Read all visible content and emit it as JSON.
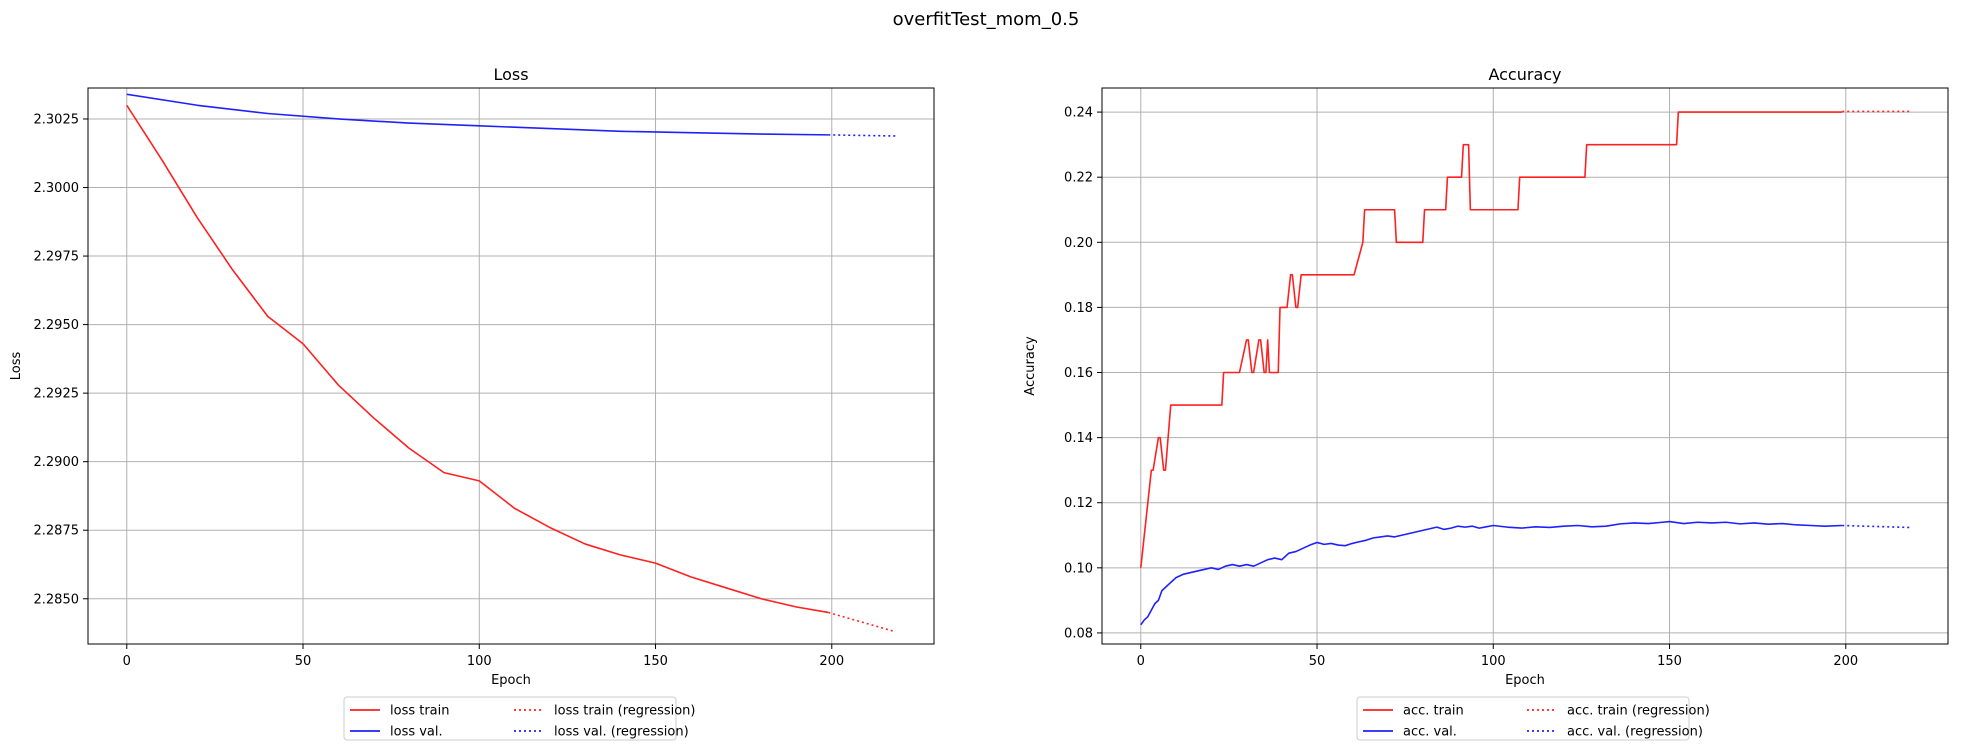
{
  "figure": {
    "suptitle": "overfitTest_mom_0.5"
  },
  "chart_data": [
    {
      "type": "line",
      "title": "Loss",
      "xlabel": "Epoch",
      "ylabel": "Loss",
      "xlim": [
        -11,
        229
      ],
      "ylim": [
        2.28335,
        2.30363
      ],
      "xticks": [
        0,
        50,
        100,
        150,
        200
      ],
      "yticks": [
        2.285,
        2.2875,
        2.29,
        2.2925,
        2.295,
        2.2975,
        2.3,
        2.3025
      ],
      "ytick_labels": [
        "2.2850",
        "2.2875",
        "2.2900",
        "2.2925",
        "2.2950",
        "2.2975",
        "2.3000",
        "2.3025"
      ],
      "grid": true,
      "legend": {
        "placement": "below-center",
        "columns": 2
      },
      "series": [
        {
          "name": "loss train",
          "color": "#ff2020",
          "style": "solid",
          "x": [
            0,
            10,
            20,
            30,
            40,
            50,
            60,
            70,
            80,
            90,
            100,
            110,
            120,
            130,
            140,
            150,
            160,
            170,
            180,
            190,
            199
          ],
          "y": [
            2.303,
            2.301,
            2.2989,
            2.297,
            2.2953,
            2.2943,
            2.2928,
            2.2916,
            2.2905,
            2.2896,
            2.2893,
            2.2883,
            2.2876,
            2.287,
            2.2866,
            2.2863,
            2.2858,
            2.2854,
            2.285,
            2.2847,
            2.2845
          ]
        },
        {
          "name": "loss val.",
          "color": "#2020ff",
          "style": "solid",
          "x": [
            0,
            20,
            40,
            60,
            80,
            100,
            120,
            140,
            160,
            180,
            199
          ],
          "y": [
            2.3034,
            2.303,
            2.3027,
            2.3025,
            2.30235,
            2.30225,
            2.30215,
            2.30205,
            2.302,
            2.30195,
            2.30192
          ]
        },
        {
          "name": "loss train (regression)",
          "color": "#ff2020",
          "style": "dotted",
          "x": [
            199,
            218
          ],
          "y": [
            2.2845,
            2.2838
          ]
        },
        {
          "name": "loss val. (regression)",
          "color": "#2020ff",
          "style": "dotted",
          "x": [
            199,
            218
          ],
          "y": [
            2.30192,
            2.30188
          ]
        }
      ]
    },
    {
      "type": "line",
      "title": "Accuracy",
      "xlabel": "Epoch",
      "ylabel": "Accuracy",
      "xlim": [
        -11,
        229
      ],
      "ylim": [
        0.0766,
        0.2474
      ],
      "xticks": [
        0,
        50,
        100,
        150,
        200
      ],
      "yticks": [
        0.08,
        0.1,
        0.12,
        0.14,
        0.16,
        0.18,
        0.2,
        0.22,
        0.24
      ],
      "ytick_labels": [
        "0.08",
        "0.10",
        "0.12",
        "0.14",
        "0.16",
        "0.18",
        "0.20",
        "0.22",
        "0.24"
      ],
      "grid": true,
      "legend": {
        "placement": "below-center",
        "columns": 2
      },
      "series": [
        {
          "name": "acc. train",
          "color": "#ff2020",
          "style": "solid",
          "x": [
            0,
            3,
            3.5,
            5,
            5.5,
            6.5,
            7,
            8.5,
            9,
            23,
            23.5,
            27.5,
            28,
            30,
            30.5,
            31.5,
            32,
            33.5,
            34,
            35,
            35.5,
            36,
            36.5,
            39,
            39.5,
            41,
            41.5,
            42.5,
            43,
            44,
            44.5,
            45.5,
            46,
            53,
            60,
            60.5,
            63,
            63.5,
            72,
            72.5,
            78,
            78.5,
            80,
            80.5,
            86.5,
            87,
            89,
            89.5,
            91,
            91.5,
            93,
            93.5,
            104,
            107,
            107.5,
            116,
            126,
            126.5,
            141,
            152,
            152.5,
            160,
            199
          ],
          "y": [
            0.1,
            0.13,
            0.13,
            0.14,
            0.14,
            0.13,
            0.13,
            0.15,
            0.15,
            0.15,
            0.16,
            0.16,
            0.16,
            0.17,
            0.17,
            0.16,
            0.16,
            0.17,
            0.17,
            0.16,
            0.16,
            0.17,
            0.16,
            0.16,
            0.18,
            0.18,
            0.18,
            0.19,
            0.19,
            0.18,
            0.18,
            0.19,
            0.19,
            0.19,
            0.19,
            0.19,
            0.2,
            0.21,
            0.21,
            0.2,
            0.2,
            0.2,
            0.2,
            0.21,
            0.21,
            0.22,
            0.22,
            0.22,
            0.22,
            0.23,
            0.23,
            0.21,
            0.21,
            0.21,
            0.22,
            0.22,
            0.22,
            0.23,
            0.23,
            0.23,
            0.24,
            0.24,
            0.24
          ]
        },
        {
          "name": "acc. val.",
          "color": "#2020ff",
          "style": "solid",
          "x": [
            0,
            1,
            2,
            3,
            4,
            5,
            6,
            7,
            8,
            9,
            10,
            12,
            14,
            16,
            18,
            20,
            22,
            24,
            26,
            28,
            30,
            32,
            34,
            36,
            38,
            40,
            42,
            44,
            46,
            48,
            50,
            52,
            54,
            56,
            58,
            60,
            62,
            64,
            66,
            68,
            70,
            72,
            74,
            76,
            78,
            80,
            82,
            84,
            86,
            88,
            90,
            92,
            94,
            96,
            98,
            100,
            104,
            108,
            112,
            116,
            120,
            124,
            128,
            132,
            136,
            140,
            144,
            148,
            150,
            154,
            158,
            162,
            166,
            170,
            174,
            178,
            182,
            186,
            190,
            194,
            199
          ],
          "y": [
            0.0825,
            0.084,
            0.085,
            0.087,
            0.089,
            0.09,
            0.093,
            0.094,
            0.095,
            0.096,
            0.097,
            0.098,
            0.0985,
            0.099,
            0.0995,
            0.1,
            0.0995,
            0.1005,
            0.101,
            0.1005,
            0.101,
            0.1005,
            0.1015,
            0.1025,
            0.103,
            0.1025,
            0.1045,
            0.105,
            0.106,
            0.107,
            0.1078,
            0.1072,
            0.1075,
            0.107,
            0.1068,
            0.1075,
            0.108,
            0.1085,
            0.1092,
            0.1095,
            0.1098,
            0.1095,
            0.11,
            0.1105,
            0.111,
            0.1115,
            0.112,
            0.1125,
            0.1118,
            0.1122,
            0.1128,
            0.1125,
            0.1128,
            0.1122,
            0.1126,
            0.113,
            0.1125,
            0.1122,
            0.1126,
            0.1124,
            0.1128,
            0.113,
            0.1126,
            0.1128,
            0.1135,
            0.1138,
            0.1136,
            0.114,
            0.1142,
            0.1136,
            0.114,
            0.1138,
            0.114,
            0.1135,
            0.1138,
            0.1134,
            0.1136,
            0.1132,
            0.113,
            0.1128,
            0.113
          ]
        },
        {
          "name": "acc. train (regression)",
          "color": "#ff2020",
          "style": "dotted",
          "x": [
            199,
            218
          ],
          "y": [
            0.2402,
            0.2402
          ]
        },
        {
          "name": "acc. val. (regression)",
          "color": "#2020ff",
          "style": "dotted",
          "x": [
            199,
            218
          ],
          "y": [
            0.113,
            0.1124
          ]
        }
      ]
    }
  ]
}
